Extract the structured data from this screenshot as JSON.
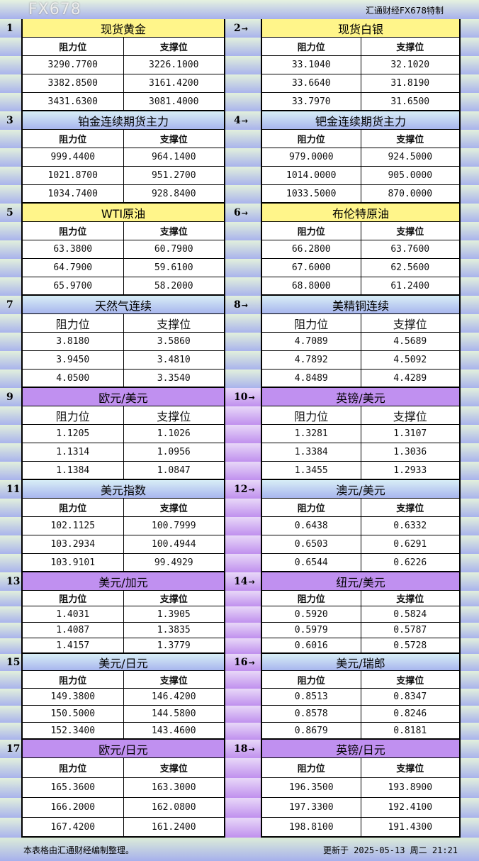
{
  "brand": "汇通财经FX678特制",
  "col_labels": {
    "resistance": "阻力位",
    "support": "支撑位"
  },
  "arrow": "→",
  "instruments": [
    {
      "no": "1",
      "name": "现货黄金",
      "style": "yellow",
      "rows": [
        [
          "3290.7700",
          "3226.1000"
        ],
        [
          "3382.8500",
          "3161.4200"
        ],
        [
          "3431.6300",
          "3081.4000"
        ]
      ]
    },
    {
      "no": "2",
      "name": "现货白银",
      "style": "yellow",
      "rows": [
        [
          "33.1040",
          "32.1020"
        ],
        [
          "33.6640",
          "31.8190"
        ],
        [
          "33.7970",
          "31.6500"
        ]
      ]
    },
    {
      "no": "3",
      "name": "铂金连续期货主力",
      "style": "blue",
      "rows": [
        [
          "999.4400",
          "964.1400"
        ],
        [
          "1021.8700",
          "951.2700"
        ],
        [
          "1034.7400",
          "928.8400"
        ]
      ]
    },
    {
      "no": "4",
      "name": "钯金连续期货主力",
      "style": "blue",
      "rows": [
        [
          "979.0000",
          "924.5000"
        ],
        [
          "1014.0000",
          "905.0000"
        ],
        [
          "1033.5000",
          "870.0000"
        ]
      ]
    },
    {
      "no": "5",
      "name": "WTI原油",
      "style": "yellow",
      "rows": [
        [
          "63.3800",
          "60.7900"
        ],
        [
          "64.7900",
          "59.6100"
        ],
        [
          "65.9700",
          "58.2000"
        ]
      ]
    },
    {
      "no": "6",
      "name": "布伦特原油",
      "style": "yellow",
      "rows": [
        [
          "66.2800",
          "63.7600"
        ],
        [
          "67.6000",
          "62.5600"
        ],
        [
          "68.8000",
          "61.2400"
        ]
      ]
    },
    {
      "no": "7",
      "name": "天然气连续",
      "style": "blue",
      "rows": [
        [
          "3.8180",
          "3.5860"
        ],
        [
          "3.9450",
          "3.4810"
        ],
        [
          "4.0500",
          "3.3540"
        ]
      ]
    },
    {
      "no": "8",
      "name": "美精铜连续",
      "style": "blue",
      "rows": [
        [
          "4.7089",
          "4.5689"
        ],
        [
          "4.7892",
          "4.5092"
        ],
        [
          "4.8489",
          "4.4289"
        ]
      ]
    },
    {
      "no": "9",
      "name": "欧元/美元",
      "style": "purple",
      "rows": [
        [
          "1.1205",
          "1.1026"
        ],
        [
          "1.1314",
          "1.0956"
        ],
        [
          "1.1384",
          "1.0847"
        ]
      ]
    },
    {
      "no": "10",
      "name": "英镑/美元",
      "style": "purple",
      "rows": [
        [
          "1.3281",
          "1.3107"
        ],
        [
          "1.3384",
          "1.3036"
        ],
        [
          "1.3455",
          "1.2933"
        ]
      ]
    },
    {
      "no": "11",
      "name": "美元指数",
      "style": "blue",
      "rows": [
        [
          "102.1125",
          "100.7999"
        ],
        [
          "103.2934",
          "100.4944"
        ],
        [
          "103.9101",
          "99.4929"
        ]
      ]
    },
    {
      "no": "12",
      "name": "澳元/美元",
      "style": "blue",
      "rows": [
        [
          "0.6438",
          "0.6332"
        ],
        [
          "0.6503",
          "0.6291"
        ],
        [
          "0.6544",
          "0.6226"
        ]
      ]
    },
    {
      "no": "13",
      "name": "美元/加元",
      "style": "purple",
      "rows": [
        [
          "1.4031",
          "1.3905"
        ],
        [
          "1.4087",
          "1.3835"
        ],
        [
          "1.4157",
          "1.3779"
        ]
      ]
    },
    {
      "no": "14",
      "name": "纽元/美元",
      "style": "purple",
      "rows": [
        [
          "0.5920",
          "0.5824"
        ],
        [
          "0.5979",
          "0.5787"
        ],
        [
          "0.6016",
          "0.5728"
        ]
      ]
    },
    {
      "no": "15",
      "name": "美元/日元",
      "style": "blue",
      "rows": [
        [
          "149.3800",
          "146.4200"
        ],
        [
          "150.5000",
          "144.5800"
        ],
        [
          "152.3400",
          "143.4600"
        ]
      ]
    },
    {
      "no": "16",
      "name": "美元/瑞郎",
      "style": "blue",
      "rows": [
        [
          "0.8513",
          "0.8347"
        ],
        [
          "0.8578",
          "0.8246"
        ],
        [
          "0.8679",
          "0.8181"
        ]
      ]
    },
    {
      "no": "17",
      "name": "欧元/日元",
      "style": "purple",
      "rows": [
        [
          "165.3600",
          "163.3000"
        ],
        [
          "166.2000",
          "162.0800"
        ],
        [
          "167.4200",
          "161.2400"
        ]
      ]
    },
    {
      "no": "18",
      "name": "英镑/日元",
      "style": "purple",
      "rows": [
        [
          "196.3500",
          "193.8900"
        ],
        [
          "197.3300",
          "192.4100"
        ],
        [
          "198.8100",
          "191.4300"
        ]
      ]
    }
  ],
  "footer": {
    "note": "本表格由汇通财经编制整理。",
    "updated": "更新于 2025-05-13 周二 21:21"
  },
  "watermark": "FX678"
}
